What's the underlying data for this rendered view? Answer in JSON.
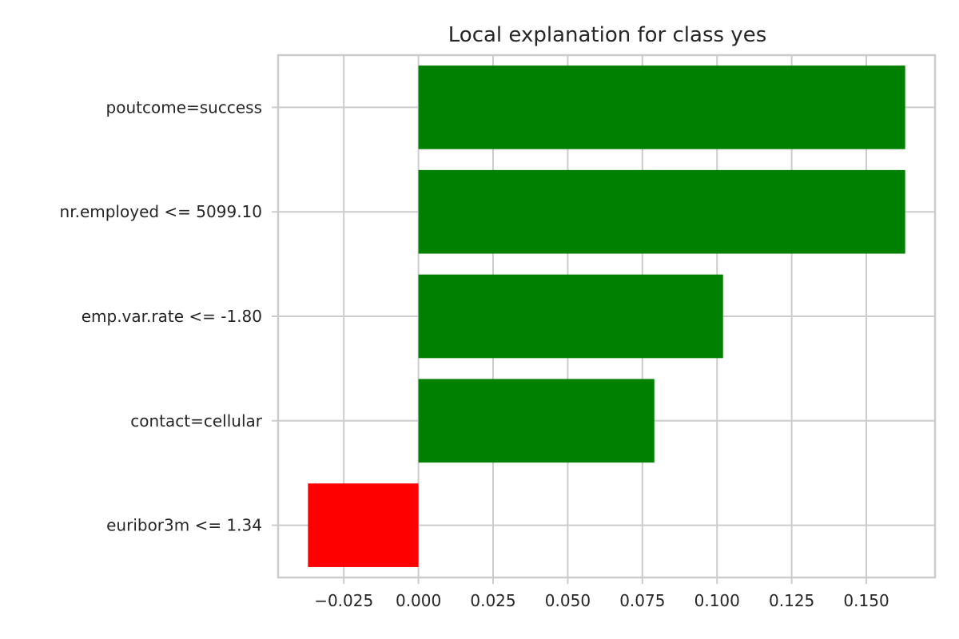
{
  "chart_data": {
    "type": "bar",
    "orientation": "horizontal",
    "title": "Local explanation for class yes",
    "xlabel": "",
    "ylabel": "",
    "categories": [
      "poutcome=success",
      "nr.employed <= 5099.10",
      "emp.var.rate <= -1.80",
      "contact=cellular",
      "euribor3m <= 1.34"
    ],
    "values": [
      0.163,
      0.163,
      0.102,
      0.079,
      -0.037
    ],
    "xlim": [
      -0.047,
      0.173
    ],
    "xticks": [
      -0.025,
      0.0,
      0.025,
      0.05,
      0.075,
      0.1,
      0.125,
      0.15
    ],
    "xtick_labels": [
      "−0.025",
      "0.000",
      "0.025",
      "0.050",
      "0.075",
      "0.100",
      "0.125",
      "0.150"
    ],
    "grid": true,
    "colors": {
      "positive": "#008000",
      "negative": "#ff0000",
      "grid": "#cccccc",
      "frame": "#cccccc",
      "text": "#262626"
    }
  }
}
